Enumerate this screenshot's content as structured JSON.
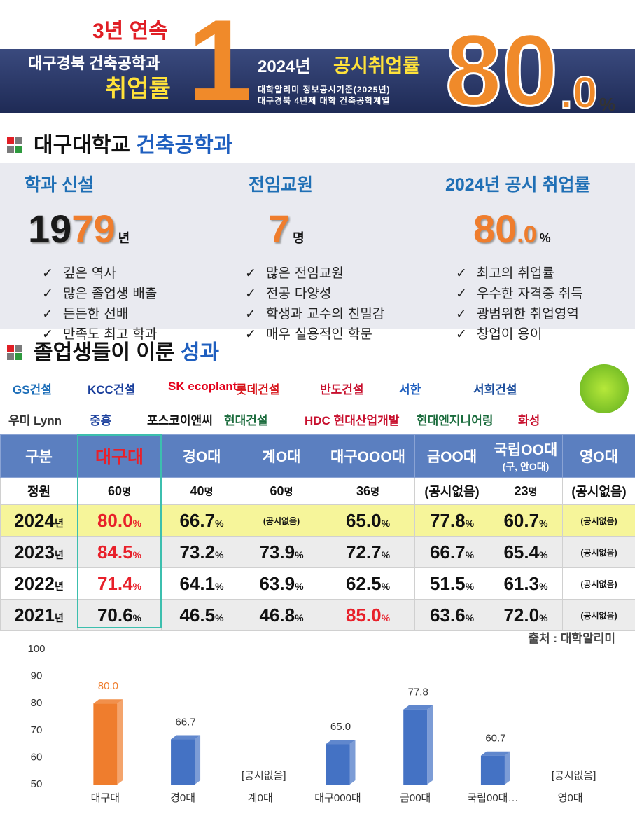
{
  "banner": {
    "streak": "3년 연속",
    "dept": "대구경북 건축공학과",
    "rate_label": "취업률",
    "rank": "1",
    "year": "2024년",
    "title": "공시취업률",
    "note1": "대학알리미 정보공시기준(2025년)",
    "note2": "대구경북 4년제 대학 건축공학계열",
    "rate_int": "80",
    "rate_dec": ".0",
    "rate_unit": "%"
  },
  "heading1": {
    "school": "대구대학교",
    "dept": "건축공학과"
  },
  "facts": [
    {
      "title": "학과 신설",
      "big": [
        "19",
        "79"
      ],
      "unit": "년",
      "items": [
        "깊은 역사",
        "많은 졸업생 배출",
        "든든한 선배",
        "만족도 최고 학과"
      ]
    },
    {
      "title": "전임교원",
      "big": [
        "7"
      ],
      "unit": "명",
      "items": [
        "많은 전임교원",
        "전공 다양성",
        "학생과 교수의 친밀감",
        "매우 실용적인 학문"
      ]
    },
    {
      "title": "2024년 공시 취업률",
      "big": [
        "80",
        ".0"
      ],
      "unit": "%",
      "items": [
        "최고의 취업률",
        "우수한 자격증 취득",
        "광범위한 취업영역",
        "창업이 용이"
      ]
    }
  ],
  "heading2": {
    "text": "졸업생들이 이룬",
    "accent": "성과"
  },
  "companies": [
    [
      "GS건설",
      "KCC건설",
      "SK ecoplant",
      "롯데건설",
      "반도건설",
      "서한",
      "서희건설"
    ],
    [
      "우미 Lynn",
      "중흥",
      "포스코이앤씨",
      "현대건설",
      "HDC 현대산업개발",
      "현대엔지니어링",
      "화성"
    ]
  ],
  "table": {
    "header": [
      [
        "구분"
      ],
      [
        "대구대"
      ],
      [
        "경O대"
      ],
      [
        "계O대"
      ],
      [
        "대구OOO대"
      ],
      [
        "금OO대"
      ],
      [
        "국립OO대",
        "(구, 안O대)"
      ],
      [
        "영O대"
      ]
    ],
    "rows": [
      [
        [
          "정원"
        ],
        [
          "60",
          "명"
        ],
        [
          "40",
          "명"
        ],
        [
          "60",
          "명"
        ],
        [
          "36",
          "명"
        ],
        [
          "(공시없음)"
        ],
        [
          "23",
          "명"
        ],
        [
          "(공시없음)"
        ]
      ],
      [
        [
          "2024",
          "년"
        ],
        [
          "80.0",
          "%"
        ],
        [
          "66.7",
          "%"
        ],
        [
          "(공시없음)"
        ],
        [
          "65.0",
          "%"
        ],
        [
          "77.8",
          "%"
        ],
        [
          "60.7",
          "%"
        ],
        [
          "(공시없음)"
        ]
      ],
      [
        [
          "2023",
          "년"
        ],
        [
          "84.5",
          "%"
        ],
        [
          "73.2",
          "%"
        ],
        [
          "73.9",
          "%"
        ],
        [
          "72.7",
          "%"
        ],
        [
          "66.7",
          "%"
        ],
        [
          "65.4",
          "%"
        ],
        [
          "(공시없음)"
        ]
      ],
      [
        [
          "2022",
          "년"
        ],
        [
          "71.4",
          "%"
        ],
        [
          "64.1",
          "%"
        ],
        [
          "63.9",
          "%"
        ],
        [
          "62.5",
          "%"
        ],
        [
          "51.5",
          "%"
        ],
        [
          "61.3",
          "%"
        ],
        [
          "(공시없음)"
        ]
      ],
      [
        [
          "2021",
          "년"
        ],
        [
          "70.6",
          "%"
        ],
        [
          "46.5",
          "%"
        ],
        [
          "46.8",
          "%"
        ],
        [
          "85.0",
          "%"
        ],
        [
          "63.6",
          "%"
        ],
        [
          "72.0",
          "%"
        ],
        [
          "(공시없음)"
        ]
      ]
    ]
  },
  "source": "출처 : 대학알리미",
  "chart_data": {
    "type": "bar",
    "categories": [
      "대구대",
      "경0대",
      "계0대",
      "대구000대",
      "금00대",
      "국립00대…",
      "영0대"
    ],
    "values": [
      80.0,
      66.7,
      null,
      65.0,
      77.8,
      60.7,
      null
    ],
    "value_labels": [
      "80.0",
      "66.7",
      null,
      "65.0",
      "77.8",
      "60.7",
      null
    ],
    "colors": [
      "#ef7d2d",
      "#4472c4",
      "#4472c4",
      "#4472c4",
      "#4472c4",
      "#4472c4",
      "#4472c4"
    ],
    "annotations": [
      "[공시없음]",
      "[공시없음]"
    ],
    "ylim": [
      50,
      100
    ],
    "yticks": [
      50,
      60,
      70,
      80,
      90,
      100
    ],
    "grid": false
  }
}
